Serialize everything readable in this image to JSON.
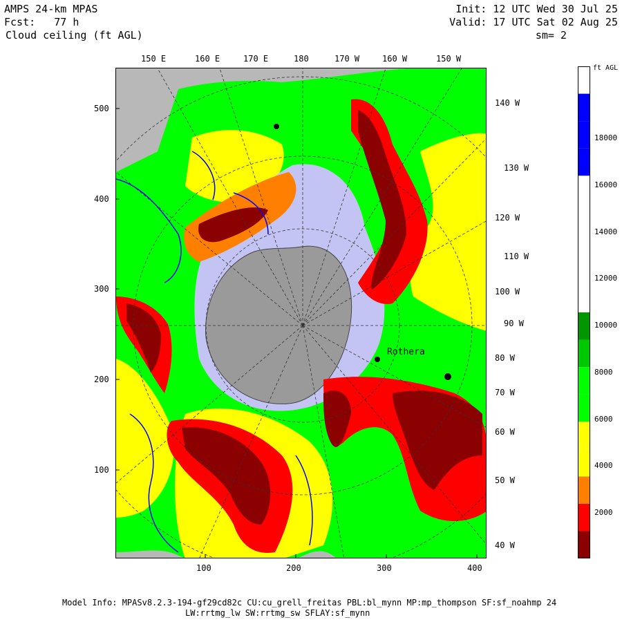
{
  "header": {
    "title_line1": "AMPS 24-km MPAS",
    "title_line2": "Fcst:   77 h",
    "title_line3": "Cloud ceiling (ft AGL)",
    "init": "Init: 12 UTC Wed 30 Jul 25",
    "valid": "Valid: 17 UTC Sat 02 Aug 25",
    "smoothing": "sm= 2"
  },
  "map": {
    "top_longitudes": [
      "150 E",
      "160 E",
      "170 E",
      "180",
      "170 W",
      "160 W",
      "150 W"
    ],
    "right_longitudes": [
      "140 W",
      "130 W",
      "120 W",
      "110 W",
      "100 W",
      "90 W",
      "80 W",
      "70 W",
      "60 W",
      "50 W",
      "40 W"
    ],
    "x_ticks": [
      "100",
      "200",
      "300",
      "400"
    ],
    "y_ticks": [
      "500",
      "400",
      "300",
      "200",
      "100"
    ],
    "station_label": "Rothera",
    "colors": {
      "land_gray": "#b8b8b8",
      "ice_shelf": "#c4c4f4",
      "dark_red": "#8b0000",
      "red": "#ff0000",
      "orange": "#ff7f00",
      "yellow": "#ffff00",
      "green_light": "#00ff00",
      "green_mid": "#00c800",
      "blue_contour": "#0000ff"
    }
  },
  "colorbar": {
    "unit": "ft AGL",
    "labels": [
      "18000",
      "16000",
      "14000",
      "12000",
      "10000",
      "8000",
      "6000",
      "4000",
      "2000"
    ],
    "colors": [
      "#8b0000",
      "#ff0000",
      "#ff7f00",
      "#ffff00",
      "#ffff00",
      "#00ff00",
      "#00ff00",
      "#00c800",
      "#009600",
      "#ffffff",
      "#ffffff",
      "#ffffff",
      "#ffffff",
      "#ffffff",
      "#0000ff",
      "#0000ff",
      "#0000ff",
      "#ffffff"
    ]
  },
  "footer": {
    "line1": "Model Info: MPASv8.2.3-194-gf29cd82c CU:cu_grell_freitas PBL:bl_mynn MP:mp_thompson SF:sf_noahmp 24",
    "line2": "LW:rrtmg_lw SW:rrtmg_sw SFLAY:sf_mynn"
  }
}
